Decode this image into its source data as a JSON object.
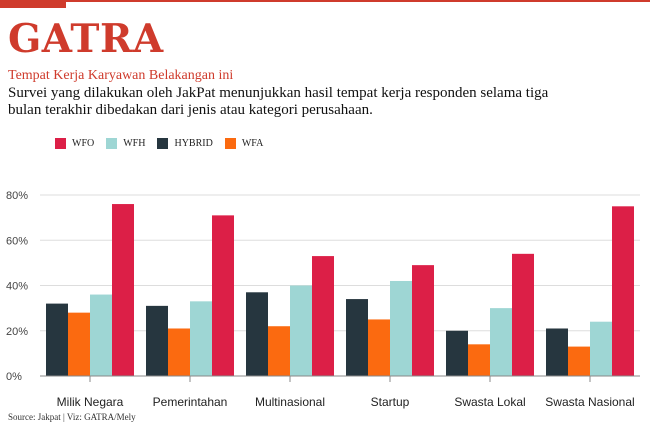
{
  "header": {
    "brand": "GATRA",
    "title": "Tempat Kerja Karyawan Belakangan ini",
    "subtitle": "Survei yang dilakukan oleh JakPat menunjukkan hasil tempat kerja responden selama tiga bulan terakhir dibedakan dari jenis atau kategori perusahaan."
  },
  "source": "Source: Jakpat | Viz: GATRA/Mely",
  "colors": {
    "brand": "#cf3b2c",
    "WFO": "#dc1f47",
    "WFH": "#9ed6d4",
    "HYBRID": "#26363f",
    "WFA": "#fb6a10"
  },
  "chart_data": {
    "type": "bar",
    "categories": [
      "Milik Negara",
      "Pemerintahan",
      "Multinasional",
      "Startup",
      "Swasta Lokal",
      "Swasta Nasional"
    ],
    "series": [
      {
        "name": "WFO",
        "values": [
          76,
          71,
          53,
          49,
          54,
          75
        ]
      },
      {
        "name": "WFH",
        "values": [
          36,
          33,
          40,
          42,
          30,
          24
        ]
      },
      {
        "name": "HYBRID",
        "values": [
          32,
          31,
          37,
          34,
          20,
          21
        ]
      },
      {
        "name": "WFA",
        "values": [
          28,
          21,
          22,
          25,
          14,
          13
        ]
      }
    ],
    "bar_order": [
      "HYBRID",
      "WFA",
      "WFH",
      "WFO"
    ],
    "yticks": [
      "0%",
      "20%",
      "40%",
      "60%",
      "80%"
    ],
    "ylim": [
      0,
      80
    ],
    "unit": "%",
    "legend_position": "top-left",
    "grid": true
  }
}
